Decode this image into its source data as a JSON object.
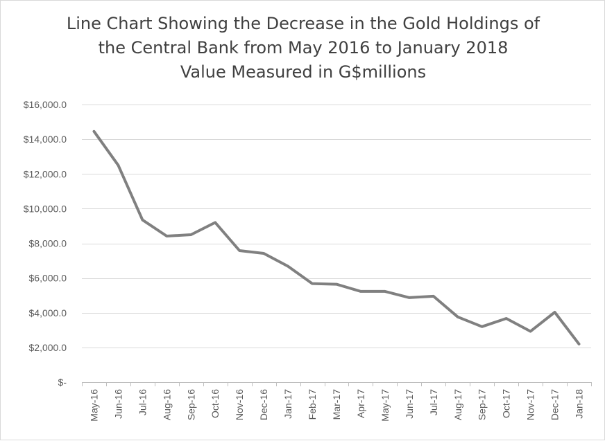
{
  "chart_data": {
    "type": "line",
    "title_lines": [
      "Line Chart Showing the Decrease in the Gold Holdings of",
      "the Central Bank from May 2016 to January 2018",
      "Value Measured in G$millions"
    ],
    "categories": [
      "May-16",
      "Jun-16",
      "Jul-16",
      "Aug-16",
      "Sep-16",
      "Oct-16",
      "Nov-16",
      "Dec-16",
      "Jan-17",
      "Feb-17",
      "Mar-17",
      "Apr-17",
      "May-17",
      "Jun-17",
      "Jul-17",
      "Aug-17",
      "Sep-17",
      "Oct-17",
      "Nov-17",
      "Dec-17",
      "Jan-18"
    ],
    "series": [
      {
        "values": [
          14450,
          12500,
          9350,
          8420,
          8500,
          9200,
          7580,
          7420,
          6680,
          5680,
          5640,
          5230,
          5230,
          4870,
          4950,
          3760,
          3200,
          3670,
          2930,
          4030,
          2200
        ]
      }
    ],
    "ylim": [
      0,
      16000
    ],
    "yticks": [
      0,
      2000,
      4000,
      6000,
      8000,
      10000,
      12000,
      14000,
      16000
    ],
    "ytick_labels": [
      "$-",
      "$2,000.0",
      "$4,000.0",
      "$6,000.0",
      "$8,000.0",
      "$10,000.0",
      "$12,000.0",
      "$14,000.0",
      "$16,000.0"
    ],
    "grid": true,
    "line_color": "#808080",
    "grid_color": "#d9d9d9"
  }
}
